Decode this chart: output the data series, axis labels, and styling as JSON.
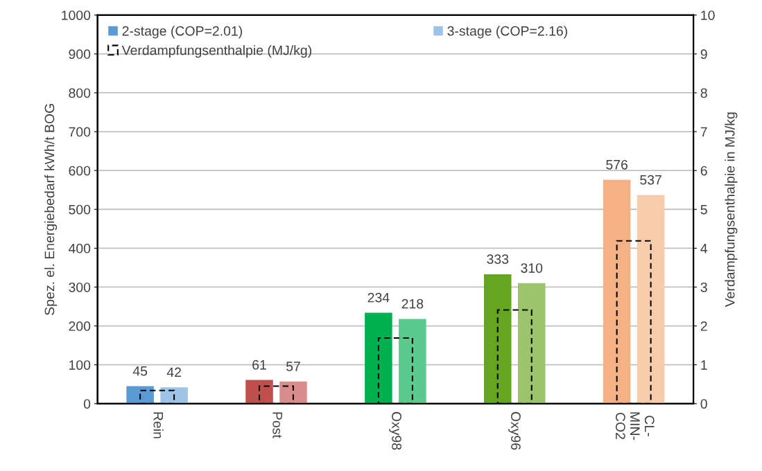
{
  "chart_data": {
    "type": "bar",
    "categories": [
      "Rein",
      "Post",
      "Oxy98",
      "Oxy96",
      "CL-\nMIN-\nCO2"
    ],
    "ylabel": "Spez. el. Energiebedarf kWh/t BOG",
    "y2label": "Verdampfungsenthalpie in MJ/kg",
    "ylim": [
      0,
      1000
    ],
    "yticks": [
      0,
      100,
      200,
      300,
      400,
      500,
      600,
      700,
      800,
      900,
      1000
    ],
    "y2lim": [
      0,
      10
    ],
    "y2ticks": [
      0,
      1,
      2,
      3,
      4,
      5,
      6,
      7,
      8,
      9,
      10
    ],
    "grid": "y",
    "legend": "top",
    "series": [
      {
        "name": "2-stage (COP=2.01)",
        "colors": [
          "#5b9bd5",
          "#c0504d",
          "#00b050",
          "#65a51f",
          "#f4b183"
        ],
        "values": [
          45,
          61,
          234,
          333,
          576
        ],
        "value_labels": [
          "45",
          "61",
          "234",
          "333",
          "576"
        ]
      },
      {
        "name": "3-stage (COP=2.16)",
        "colors": [
          "#9dc3e6",
          "#d98d8b",
          "#5cca8c",
          "#9cc46c",
          "#f8ccaa"
        ],
        "values": [
          42,
          57,
          218,
          310,
          537
        ],
        "value_labels": [
          "42",
          "57",
          "218",
          "310",
          "537"
        ]
      },
      {
        "name": "Verdampfungsenthalpie (MJ/kg)",
        "axis": "y2",
        "line_style": "dashed",
        "color": "#000000",
        "values": [
          0.34,
          0.45,
          1.69,
          2.41,
          4.19
        ]
      }
    ]
  }
}
